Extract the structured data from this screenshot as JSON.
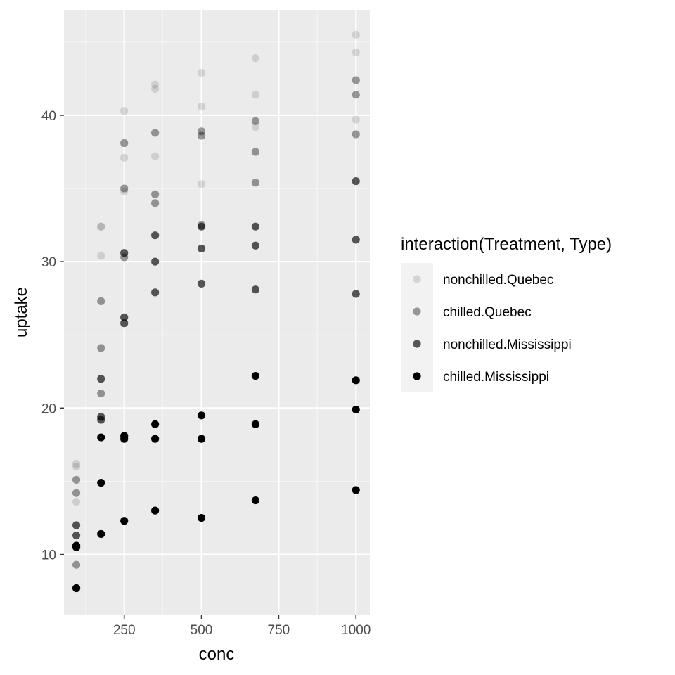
{
  "chart_data": {
    "type": "scatter",
    "xlabel": "conc",
    "ylabel": "uptake",
    "xlim": [
      55,
      1045
    ],
    "ylim": [
      5.9,
      47.2
    ],
    "x_ticks": [
      250,
      500,
      750,
      1000
    ],
    "y_ticks": [
      10,
      20,
      30,
      40
    ],
    "grid": true,
    "legend": {
      "title": "interaction(Treatment, Type)",
      "position": "right"
    },
    "series": [
      {
        "name": "nonchilled.Quebec",
        "color": "#000000",
        "alpha": 0.12,
        "points": [
          [
            95,
            16.0
          ],
          [
            95,
            13.6
          ],
          [
            95,
            16.2
          ],
          [
            175,
            30.4
          ],
          [
            175,
            32.4
          ],
          [
            175,
            32.4
          ],
          [
            250,
            34.8
          ],
          [
            250,
            37.1
          ],
          [
            250,
            40.3
          ],
          [
            350,
            37.2
          ],
          [
            350,
            41.8
          ],
          [
            350,
            42.1
          ],
          [
            500,
            35.3
          ],
          [
            500,
            40.6
          ],
          [
            500,
            42.9
          ],
          [
            675,
            39.2
          ],
          [
            675,
            41.4
          ],
          [
            675,
            43.9
          ],
          [
            1000,
            39.7
          ],
          [
            1000,
            44.3
          ],
          [
            1000,
            45.5
          ]
        ]
      },
      {
        "name": "chilled.Quebec",
        "color": "#000000",
        "alpha": 0.38,
        "points": [
          [
            95,
            14.2
          ],
          [
            95,
            9.3
          ],
          [
            95,
            15.1
          ],
          [
            175,
            24.1
          ],
          [
            175,
            27.3
          ],
          [
            175,
            21.0
          ],
          [
            250,
            30.3
          ],
          [
            250,
            35.0
          ],
          [
            250,
            38.1
          ],
          [
            350,
            34.6
          ],
          [
            350,
            38.8
          ],
          [
            350,
            34.0
          ],
          [
            500,
            32.5
          ],
          [
            500,
            38.6
          ],
          [
            500,
            38.9
          ],
          [
            675,
            35.4
          ],
          [
            675,
            37.5
          ],
          [
            675,
            39.6
          ],
          [
            1000,
            38.7
          ],
          [
            1000,
            42.4
          ],
          [
            1000,
            41.4
          ]
        ]
      },
      {
        "name": "nonchilled.Mississippi",
        "color": "#000000",
        "alpha": 0.65,
        "points": [
          [
            95,
            10.6
          ],
          [
            95,
            12.0
          ],
          [
            95,
            11.3
          ],
          [
            175,
            19.2
          ],
          [
            175,
            22.0
          ],
          [
            175,
            19.4
          ],
          [
            250,
            26.2
          ],
          [
            250,
            30.6
          ],
          [
            250,
            25.8
          ],
          [
            350,
            30.0
          ],
          [
            350,
            31.8
          ],
          [
            350,
            27.9
          ],
          [
            500,
            30.9
          ],
          [
            500,
            32.4
          ],
          [
            500,
            28.5
          ],
          [
            675,
            32.4
          ],
          [
            675,
            31.1
          ],
          [
            675,
            28.1
          ],
          [
            1000,
            35.5
          ],
          [
            1000,
            31.5
          ],
          [
            1000,
            27.8
          ]
        ]
      },
      {
        "name": "chilled.Mississippi",
        "color": "#000000",
        "alpha": 1.0,
        "points": [
          [
            95,
            7.7
          ],
          [
            95,
            10.5
          ],
          [
            95,
            10.6
          ],
          [
            175,
            11.4
          ],
          [
            175,
            14.9
          ],
          [
            175,
            18.0
          ],
          [
            250,
            12.3
          ],
          [
            250,
            18.1
          ],
          [
            250,
            17.9
          ],
          [
            350,
            13.0
          ],
          [
            350,
            18.9
          ],
          [
            350,
            17.9
          ],
          [
            500,
            12.5
          ],
          [
            500,
            19.5
          ],
          [
            500,
            17.9
          ],
          [
            675,
            13.7
          ],
          [
            675,
            22.2
          ],
          [
            675,
            18.9
          ],
          [
            1000,
            14.4
          ],
          [
            1000,
            21.9
          ],
          [
            1000,
            19.9
          ]
        ]
      }
    ]
  }
}
